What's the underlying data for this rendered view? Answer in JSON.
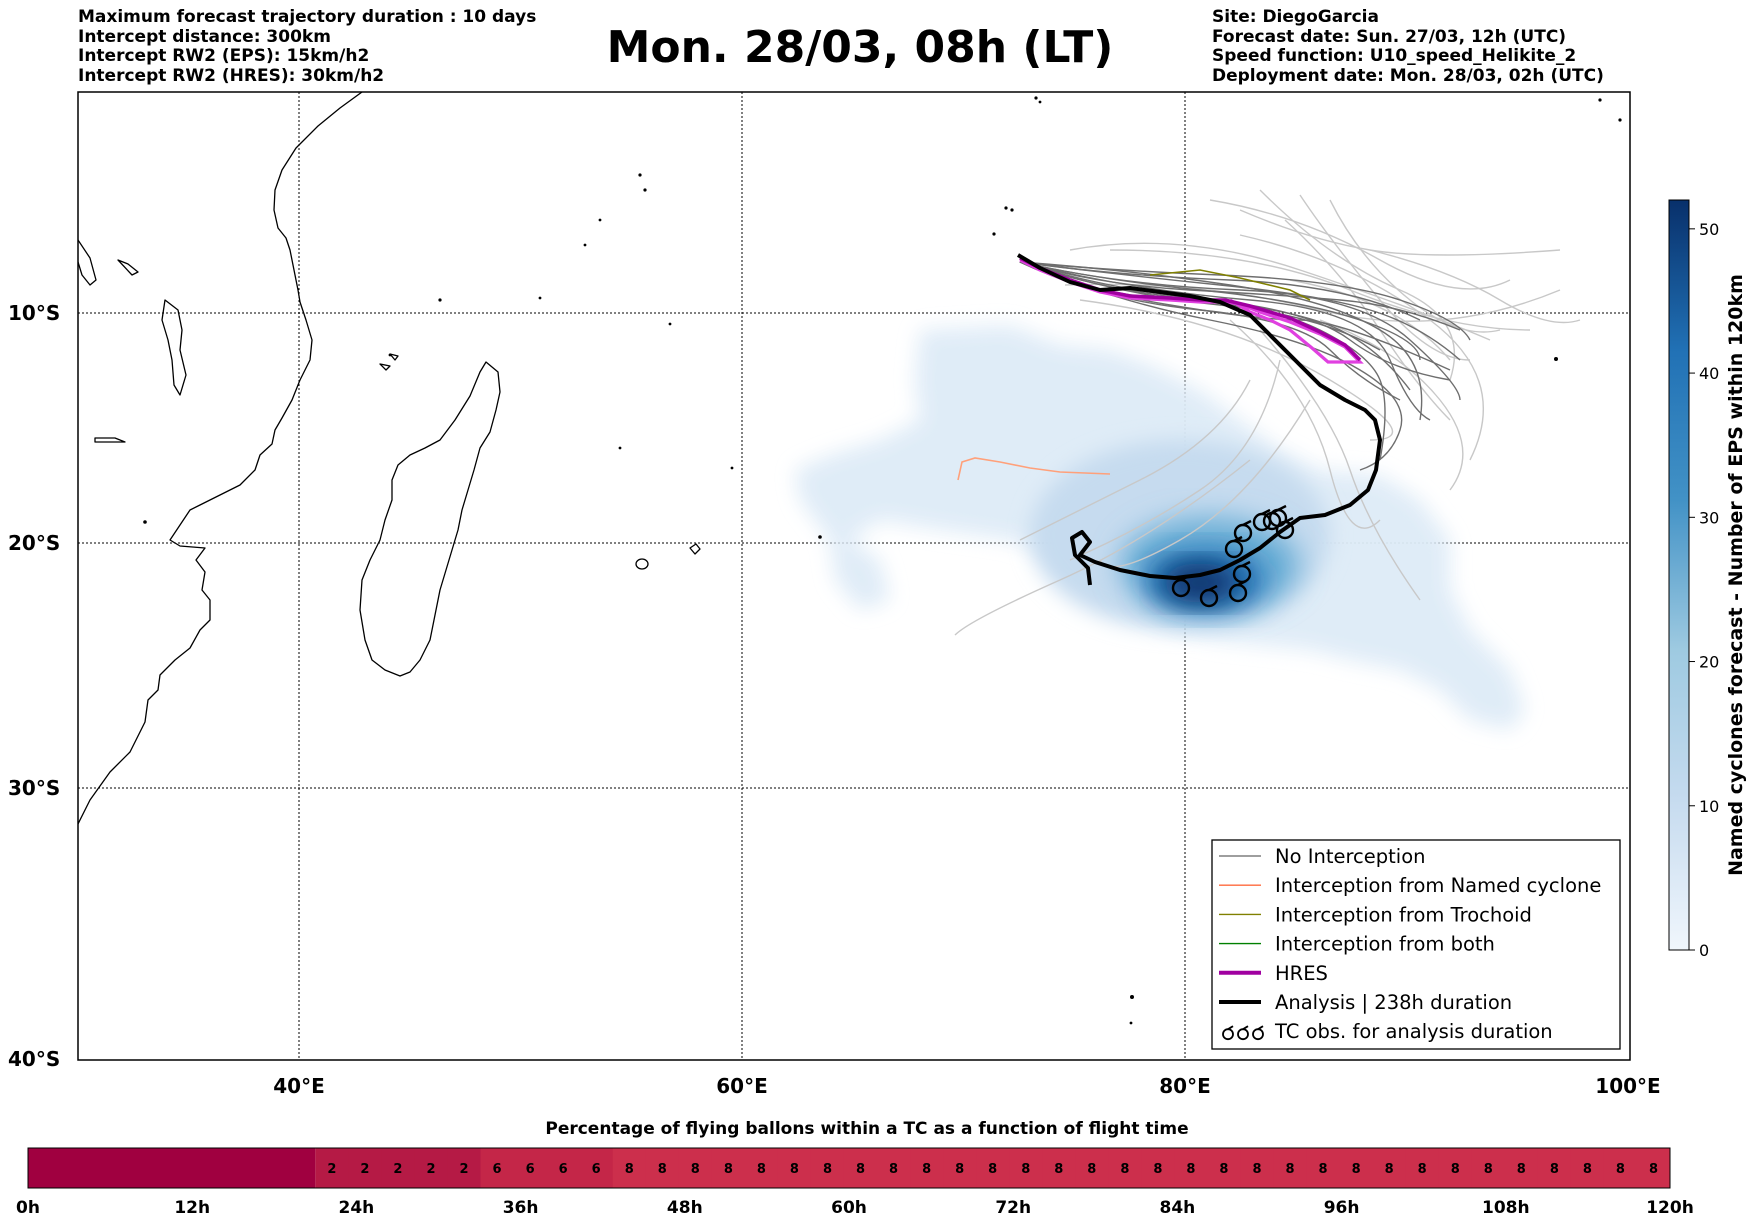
{
  "header_left": [
    "Maximum forecast trajectory duration : 10 days",
    "Intercept distance: 300km",
    "Intercept RW2 (EPS):  15km/h2",
    "Intercept RW2 (HRES): 30km/h2"
  ],
  "title": "Mon. 28/03, 08h (LT)",
  "header_right": [
    "Site: DiegoGarcia",
    "Forecast date: Sun. 27/03, 12h (UTC)",
    "Speed function: U10_speed_Helikite_2",
    "Deployment date: Mon. 28/03, 02h (UTC)"
  ],
  "map": {
    "lat_labels": [
      "10°S",
      "20°S",
      "30°S",
      "40°S"
    ],
    "lon_labels": [
      "40°E",
      "60°E",
      "80°E",
      "100°E"
    ],
    "colors": {
      "no_interception": "#7f7f7f",
      "named_cyclone": "#ff6a3d",
      "trochoid": "#808000",
      "both": "#008000",
      "hres": "#a000a0",
      "analysis": "#000000",
      "density_low": "#deebf7",
      "density_high": "#08306b"
    }
  },
  "legend": {
    "items": [
      {
        "label": "No Interception",
        "symbol": "thin-line",
        "color": "#7f7f7f"
      },
      {
        "label": "Interception from Named cyclone",
        "symbol": "thin-line",
        "color": "#ff6a3d"
      },
      {
        "label": "Interception from Trochoid",
        "symbol": "thin-line",
        "color": "#808000"
      },
      {
        "label": "Interception from both",
        "symbol": "thin-line",
        "color": "#008000"
      },
      {
        "label": "HRES",
        "symbol": "thick-line",
        "color": "#a000a0"
      },
      {
        "label": "Analysis | 238h duration",
        "symbol": "thick-line",
        "color": "#000000"
      },
      {
        "label": "TC obs. for analysis duration",
        "symbol": "tc-symbols",
        "color": "#000000"
      }
    ]
  },
  "colorbar": {
    "title": "Named cyclones forecast - Number of EPS within 120km",
    "ticks": [
      "0",
      "10",
      "20",
      "30",
      "40",
      "50"
    ],
    "min": 0,
    "max": 52
  },
  "strip": {
    "title": "Percentage of flying ballons within a TC as a function of flight time",
    "values": [
      "2",
      "2",
      "2",
      "2",
      "2",
      "6",
      "6",
      "6",
      "6",
      "8",
      "8",
      "8",
      "8",
      "8",
      "8",
      "8",
      "8",
      "8",
      "8",
      "8",
      "8",
      "8",
      "8",
      "8",
      "8",
      "8",
      "8",
      "8",
      "8",
      "8",
      "8",
      "8",
      "8",
      "8",
      "8",
      "8",
      "8",
      "8",
      "8",
      "8",
      "8"
    ],
    "ticks": [
      "0h",
      "12h",
      "24h",
      "36h",
      "48h",
      "60h",
      "72h",
      "84h",
      "96h",
      "108h",
      "120h"
    ],
    "colors": {
      "zero": "#a00040",
      "low": "#b51a45",
      "mid": "#c42648",
      "high": "#cc2f4c"
    }
  }
}
